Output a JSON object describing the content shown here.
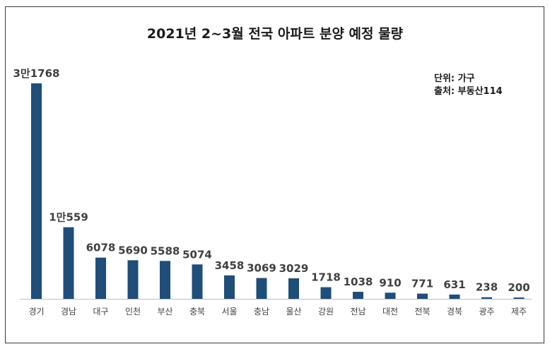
{
  "chart_data": {
    "type": "bar",
    "title": "2021년 2~3월 전국 아파트 분양 예정 물량",
    "unit_note": "단위: 가구",
    "source_note": "출처: 부동산114",
    "categories": [
      "경기",
      "경남",
      "대구",
      "인천",
      "부산",
      "충북",
      "서울",
      "충남",
      "울산",
      "강원",
      "전남",
      "대전",
      "전북",
      "경북",
      "광주",
      "제주"
    ],
    "values": [
      31768,
      10559,
      6078,
      5690,
      5588,
      5074,
      3458,
      3069,
      3029,
      1718,
      1038,
      910,
      771,
      631,
      238,
      200
    ],
    "value_labels": [
      "3만1768",
      "1만559",
      "6078",
      "5690",
      "5588",
      "5074",
      "3458",
      "3069",
      "3029",
      "1718",
      "1038",
      "910",
      "771",
      "631",
      "238",
      "200"
    ],
    "bar_color": "#1f4e79",
    "axis_color": "#bfbfbf",
    "ylim": [
      0,
      31768
    ],
    "grid": false,
    "legend": "none",
    "xlabel": "",
    "ylabel": ""
  }
}
